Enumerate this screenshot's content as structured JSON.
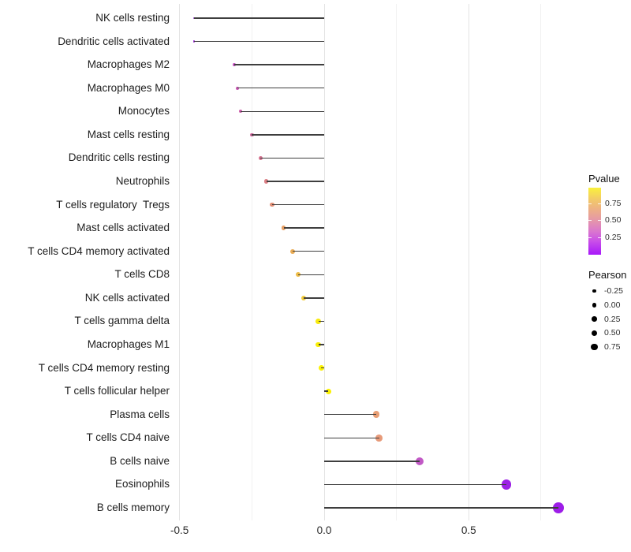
{
  "chart_data": {
    "type": "lollipop",
    "orientation": "horizontal",
    "title": "",
    "xlabel": "",
    "ylabel": "",
    "x_ticks": [
      -0.5,
      0.0,
      0.5
    ],
    "x_tick_labels": [
      "-0.5",
      "0.0",
      "0.5"
    ],
    "xlim": [
      -0.52,
      0.85
    ],
    "grid": "vertical-only",
    "gridlines_major": [
      -0.5,
      0.0,
      0.5
    ],
    "gridlines_minor": [
      -0.25,
      0.25,
      0.75
    ],
    "size_encoding": "Pearson",
    "color_encoding": "Pvalue",
    "points": [
      {
        "label": "NK cells resting",
        "pearson": -0.45,
        "color": "#9c2cd8"
      },
      {
        "label": "Dendritic cells activated",
        "pearson": -0.45,
        "color": "#9c2cd8"
      },
      {
        "label": "Macrophages M2",
        "pearson": -0.31,
        "color": "#c24fbe"
      },
      {
        "label": "Macrophages M0",
        "pearson": -0.3,
        "color": "#c958b4"
      },
      {
        "label": "Monocytes",
        "pearson": -0.29,
        "color": "#cd5fab"
      },
      {
        "label": "Mast cells resting",
        "pearson": -0.25,
        "color": "#d1679e"
      },
      {
        "label": "Dendritic cells resting",
        "pearson": -0.22,
        "color": "#d67390"
      },
      {
        "label": "Neutrophils",
        "pearson": -0.2,
        "color": "#db7f85"
      },
      {
        "label": "T cells regulatory  Tregs",
        "pearson": -0.18,
        "color": "#e08d74"
      },
      {
        "label": "Mast cells activated",
        "pearson": -0.14,
        "color": "#e69e62"
      },
      {
        "label": "T cells CD4 memory activated",
        "pearson": -0.11,
        "color": "#eaac55"
      },
      {
        "label": "T cells CD8",
        "pearson": -0.09,
        "color": "#eebc47"
      },
      {
        "label": "NK cells activated",
        "pearson": -0.07,
        "color": "#f2cc3b"
      },
      {
        "label": "T cells gamma delta",
        "pearson": -0.02,
        "color": "#f8ea0e"
      },
      {
        "label": "Macrophages M1",
        "pearson": -0.02,
        "color": "#f9ee06"
      },
      {
        "label": "T cells CD4 memory resting",
        "pearson": -0.01,
        "color": "#fbf203"
      },
      {
        "label": "T cells follicular helper",
        "pearson": 0.015,
        "color": "#faf000"
      },
      {
        "label": "Plasma cells",
        "pearson": 0.18,
        "color": "#e89e74"
      },
      {
        "label": "T cells CD4 naive",
        "pearson": 0.19,
        "color": "#e79a79"
      },
      {
        "label": "B cells naive",
        "pearson": 0.33,
        "color": "#c158c5"
      },
      {
        "label": "Eosinophils",
        "pearson": 0.63,
        "color": "#9c20e5"
      },
      {
        "label": "B cells memory",
        "pearson": 0.81,
        "color": "#9d1de8"
      }
    ],
    "legend_pvalue": {
      "title": "Pvalue",
      "range": [
        0,
        1
      ],
      "tick_labels": [
        "0.75",
        "0.50",
        "0.25"
      ],
      "tick_values": [
        0.75,
        0.5,
        0.25
      ],
      "gradient_top_to_bottom": [
        {
          "stop": 0.0,
          "color": "#faf13c"
        },
        {
          "stop": 0.18,
          "color": "#f2c969"
        },
        {
          "stop": 0.35,
          "color": "#ecac8b"
        },
        {
          "stop": 0.5,
          "color": "#e495ac"
        },
        {
          "stop": 0.65,
          "color": "#da77ce"
        },
        {
          "stop": 0.8,
          "color": "#c94fe8"
        },
        {
          "stop": 1.0,
          "color": "#a818fa"
        }
      ]
    },
    "legend_pearson": {
      "title": "Pearson",
      "items": [
        {
          "label": "-0.25",
          "value": -0.25
        },
        {
          "label": "0.00",
          "value": 0.0
        },
        {
          "label": "0.25",
          "value": 0.25
        },
        {
          "label": "0.50",
          "value": 0.5
        },
        {
          "label": "0.75",
          "value": 0.75
        }
      ]
    }
  }
}
